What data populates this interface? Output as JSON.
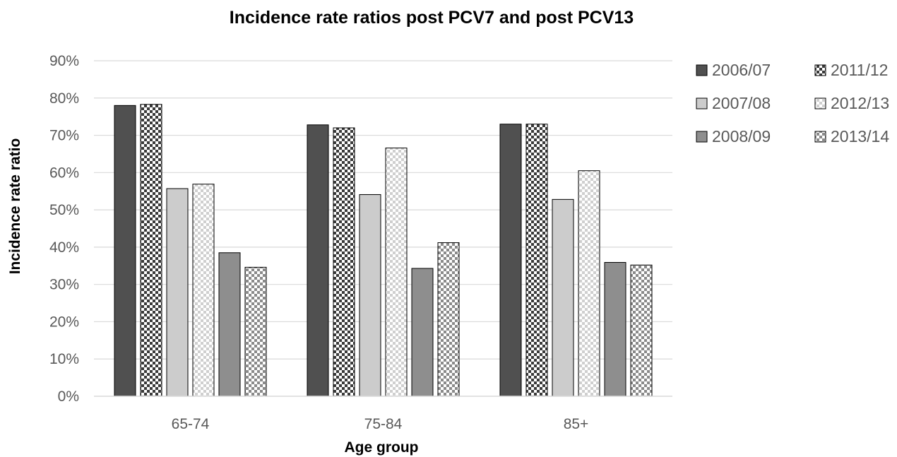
{
  "chart_data": {
    "type": "bar",
    "title": "Incidence rate ratios post PCV7 and post PCV13",
    "xlabel": "Age group",
    "ylabel": "Incidence rate ratio",
    "categories": [
      "65-74",
      "75-84",
      "85+"
    ],
    "y_ticks": [
      "0%",
      "10%",
      "20%",
      "30%",
      "40%",
      "50%",
      "60%",
      "70%",
      "80%",
      "90%"
    ],
    "ylim": [
      0,
      0.9
    ],
    "grid": true,
    "legend_position": "right",
    "series": [
      {
        "name": "2006/07",
        "values": [
          0.78,
          0.728,
          0.73
        ],
        "fill": "solid",
        "color": "#505050"
      },
      {
        "name": "2011/12",
        "values": [
          0.783,
          0.72,
          0.73
        ],
        "fill": "checker",
        "color": "#3a3a3a"
      },
      {
        "name": "2007/08",
        "values": [
          0.557,
          0.541,
          0.528
        ],
        "fill": "solid",
        "color": "#cccccc"
      },
      {
        "name": "2012/13",
        "values": [
          0.569,
          0.666,
          0.605
        ],
        "fill": "checker",
        "color": "#cfcfcf"
      },
      {
        "name": "2008/09",
        "values": [
          0.385,
          0.343,
          0.359
        ],
        "fill": "solid",
        "color": "#8e8e8e"
      },
      {
        "name": "2013/14",
        "values": [
          0.346,
          0.412,
          0.352
        ],
        "fill": "checker",
        "color": "#8a8a8a"
      }
    ]
  }
}
